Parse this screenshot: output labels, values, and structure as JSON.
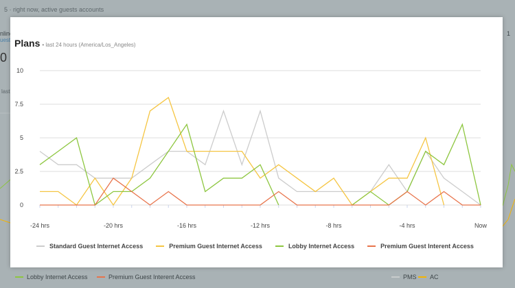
{
  "background": {
    "top_text": "5 · right now, active guests accounts",
    "left_label_1": "nline",
    "left_label_2": "uests",
    "left_value": "0",
    "left_label_3": "last",
    "right_label_1": "1",
    "bottom_legend": [
      {
        "label": "Lobby Internet Access",
        "color": "#8dc63f"
      },
      {
        "label": "Premium Guest Interent Access",
        "color": "#e8734a"
      },
      {
        "label": "PMS",
        "color": "#c8cccc"
      },
      {
        "label": "AC",
        "color": "#f5b400"
      }
    ]
  },
  "modal": {
    "title": "Plans",
    "subtitle": "• last 24 hours (America/Los_Angeles)"
  },
  "chart_data": {
    "type": "line",
    "title": "Plans",
    "subtitle": "• last 24 hours (America/Los_Angeles)",
    "x": [
      -24,
      -23,
      -22,
      -21,
      -20,
      -19,
      -18,
      -17,
      -16,
      -15,
      -14,
      -13,
      -12,
      -11,
      -10,
      -9,
      -8,
      -7,
      -6,
      -5,
      -4,
      -3,
      -2,
      -1,
      0
    ],
    "x_tick_values": [
      -24,
      -20,
      -16,
      -12,
      -8,
      -4,
      0
    ],
    "x_tick_labels": [
      "-24 hrs",
      "-20 hrs",
      "-16 hrs",
      "-12 hrs",
      "-8 hrs",
      "-4 hrs",
      "Now"
    ],
    "y_tick_values": [
      0,
      2.5,
      5,
      7.5,
      10
    ],
    "y_tick_labels": [
      "0",
      "2.5",
      "5",
      "7.5",
      "10"
    ],
    "ylim": [
      0,
      10
    ],
    "grid": true,
    "legend_position": "bottom",
    "series": [
      {
        "name": "Standard Guest Internet Access",
        "color": "#cccccc",
        "values": [
          4,
          3,
          3,
          2,
          2,
          2,
          3,
          4,
          4,
          3,
          7,
          3,
          7,
          2,
          1,
          1,
          1,
          1,
          1,
          3,
          1,
          4,
          2,
          1,
          0
        ]
      },
      {
        "name": "Premium Guest Internet Access",
        "color": "#f5c542",
        "values": [
          1,
          1,
          0,
          2,
          0,
          2,
          7,
          8,
          4,
          4,
          4,
          4,
          2,
          3,
          2,
          1,
          2,
          0,
          1,
          2,
          2,
          5,
          0,
          null,
          null
        ]
      },
      {
        "name": "Lobby Internet Access",
        "color": "#8dc63f",
        "values": [
          3,
          4,
          5,
          0,
          1,
          1,
          2,
          4,
          6,
          1,
          2,
          2,
          3,
          0,
          null,
          null,
          null,
          0,
          1,
          0,
          1,
          4,
          3,
          6,
          0
        ]
      },
      {
        "name": "Premium Guest Interent Access",
        "color": "#e8734a",
        "values": [
          0,
          0,
          0,
          0,
          2,
          1,
          0,
          1,
          0,
          0,
          0,
          0,
          0,
          1,
          0,
          0,
          0,
          0,
          0,
          0,
          1,
          0,
          1,
          0,
          0
        ]
      }
    ]
  }
}
